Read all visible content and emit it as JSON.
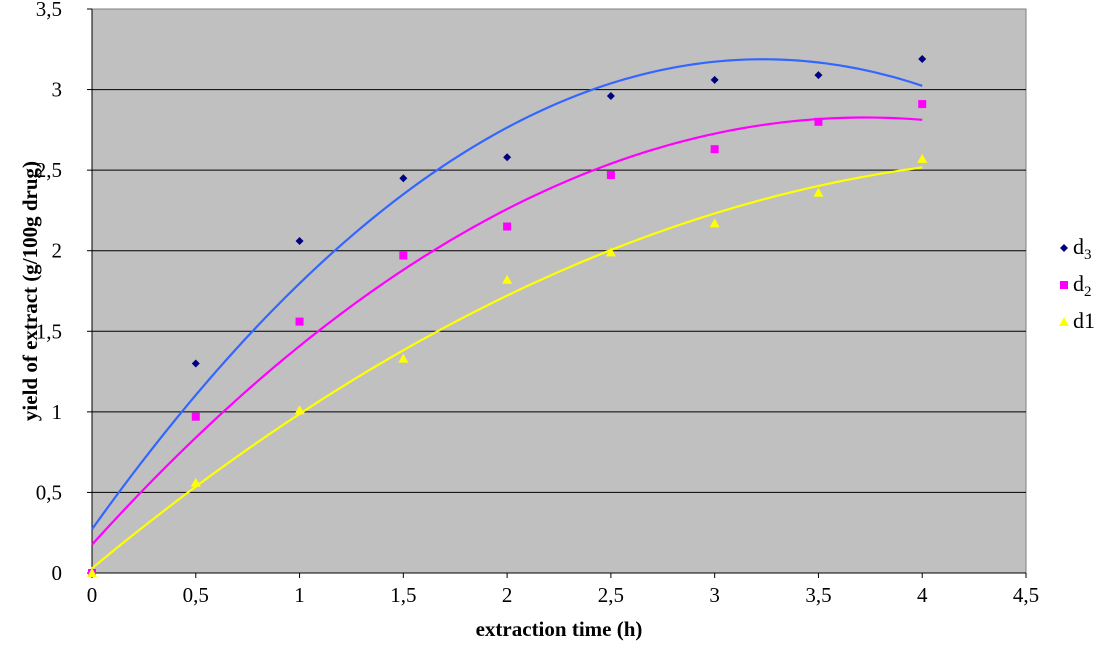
{
  "chart_data": {
    "type": "scatter",
    "title": "",
    "xlabel": "extraction time (h)",
    "ylabel": "yield of extract (g/100g drug)",
    "xlim": [
      0,
      4.5
    ],
    "ylim": [
      0,
      3.5
    ],
    "x_ticks": [
      "0",
      "0,5",
      "1",
      "1,5",
      "2",
      "2,5",
      "3",
      "3,5",
      "4",
      "4,5"
    ],
    "y_ticks": [
      "0",
      "0,5",
      "1",
      "1,5",
      "2",
      "2,5",
      "3",
      "3,5"
    ],
    "grid": "horizontal",
    "plot_background": "#C0C0C0",
    "legend_position": "right",
    "series": [
      {
        "name": "d",
        "name_sub": "3",
        "marker": "diamond",
        "marker_color": "#000080",
        "trend_color": "#3366FF",
        "trend": "polynomial-2",
        "x": [
          0,
          0.5,
          1,
          1.5,
          2,
          2.5,
          3,
          3.5,
          4
        ],
        "y": [
          0,
          1.3,
          2.06,
          2.45,
          2.58,
          2.96,
          3.06,
          3.09,
          3.19
        ]
      },
      {
        "name": "d",
        "name_sub": "2",
        "marker": "square",
        "marker_color": "#FF00FF",
        "trend_color": "#FF00FF",
        "trend": "polynomial-2",
        "x": [
          0,
          0.5,
          1,
          1.5,
          2,
          2.5,
          3,
          3.5,
          4
        ],
        "y": [
          0,
          0.97,
          1.56,
          1.97,
          2.15,
          2.47,
          2.63,
          2.8,
          2.91
        ]
      },
      {
        "name": "d1",
        "name_sub": "",
        "marker": "triangle",
        "marker_color": "#FFFF00",
        "trend_color": "#FFFF00",
        "trend": "polynomial-2",
        "x": [
          0,
          0.5,
          1,
          1.5,
          2,
          2.5,
          3,
          3.5,
          4
        ],
        "y": [
          0,
          0.56,
          1.01,
          1.33,
          1.82,
          1.99,
          2.17,
          2.36,
          2.57
        ]
      }
    ]
  }
}
